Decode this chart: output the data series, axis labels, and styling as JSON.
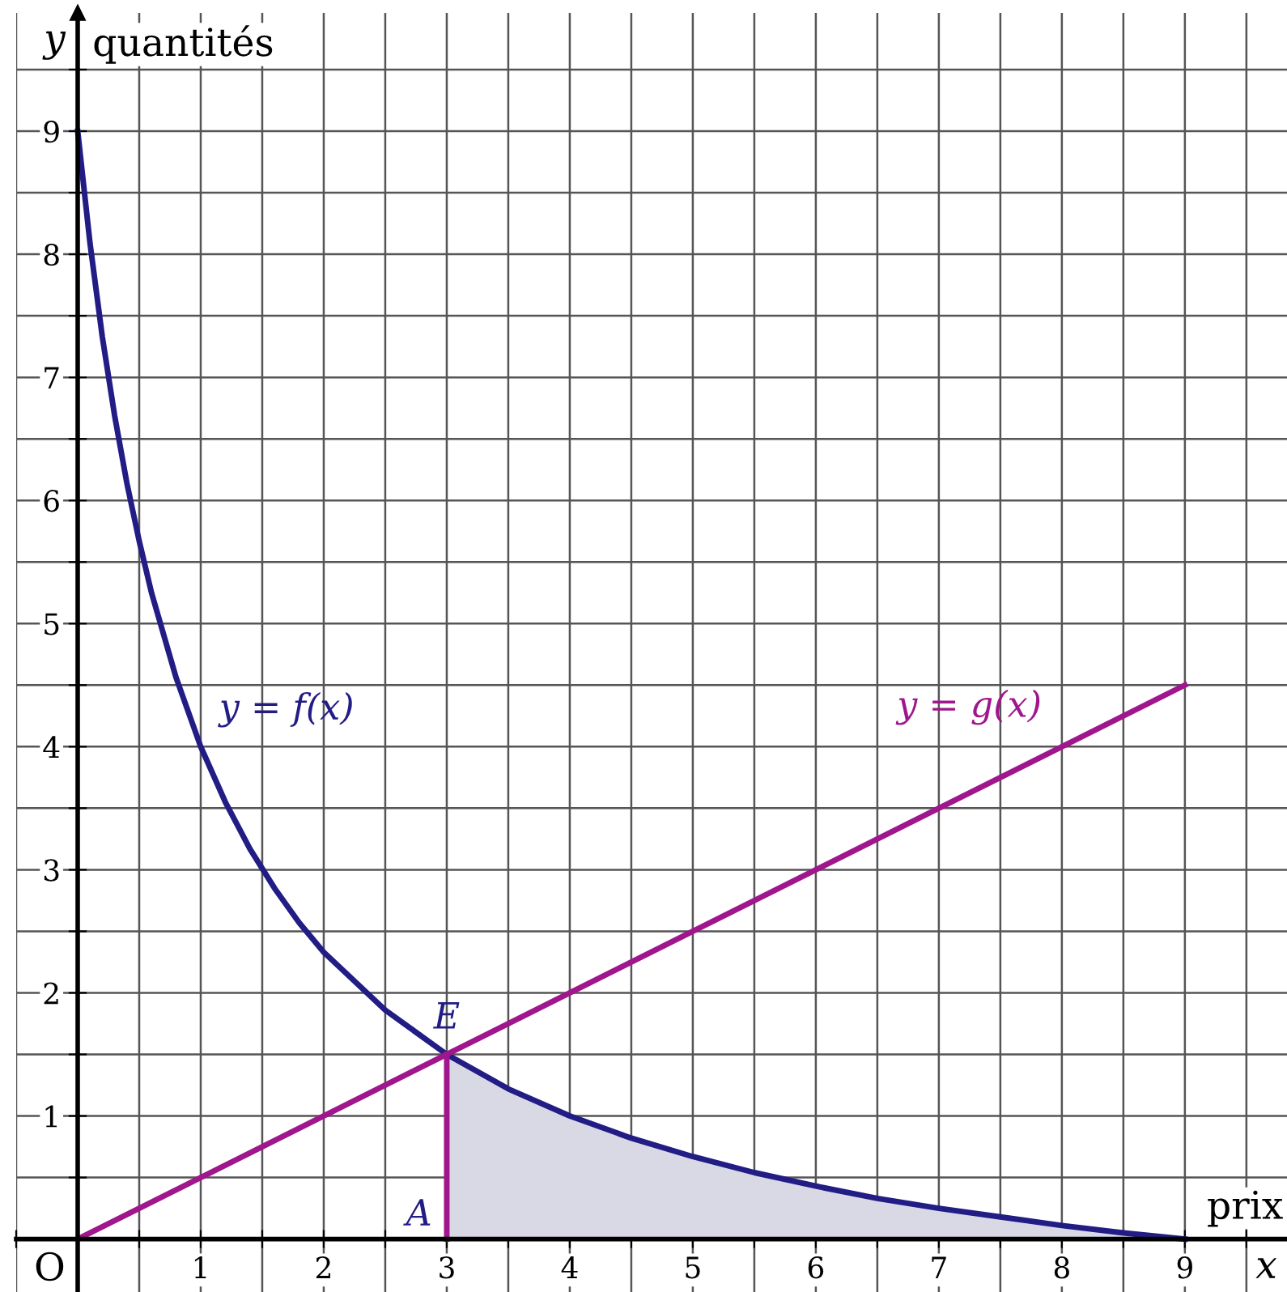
{
  "chart_data": {
    "type": "line",
    "xlabel": "x",
    "ylabel": "y",
    "xlim": [
      -0.5,
      9.83
    ],
    "ylim": [
      -0.43,
      9.96
    ],
    "xticks": [
      {
        "value": -0.5,
        "label": null
      },
      {
        "value": 0,
        "label": null
      },
      {
        "value": 0.5,
        "label": null
      },
      1,
      {
        "value": 1.5,
        "label": null
      },
      2,
      {
        "value": 2.5,
        "label": null
      },
      3,
      {
        "value": 3.5,
        "label": null
      },
      4,
      {
        "value": 4.5,
        "label": null
      },
      5,
      {
        "value": 5.5,
        "label": null
      },
      6,
      {
        "value": 6.5,
        "label": null
      },
      7,
      {
        "value": 7.5,
        "label": null
      },
      8,
      {
        "value": 8.5,
        "label": null
      },
      9,
      {
        "value": 9.5,
        "label": null
      }
    ],
    "yticks": [
      {
        "value": 0,
        "label": null
      },
      {
        "value": 0.5,
        "label": null
      },
      1,
      {
        "value": 1.5,
        "label": null
      },
      2,
      {
        "value": 2.5,
        "label": null
      },
      3,
      {
        "value": 3.5,
        "label": null
      },
      4,
      {
        "value": 4.5,
        "label": null
      },
      5,
      {
        "value": 5.5,
        "label": null
      },
      6,
      {
        "value": 6.5,
        "label": null
      },
      7,
      {
        "value": 7.5,
        "label": null
      },
      8,
      {
        "value": 8.5,
        "label": null
      },
      9,
      {
        "value": 9.5,
        "label": null
      }
    ],
    "grid": true,
    "legend": false,
    "marker": "none",
    "line_style": "solid",
    "series": [
      {
        "type": "area",
        "color": "#d9d9e6",
        "x": [
          3,
          3.5,
          4,
          4.5,
          5,
          5.5,
          6,
          6.5,
          7,
          7.5,
          8,
          8.5,
          9
        ],
        "values": [
          1.5,
          1.22,
          1,
          0.82,
          0.67,
          0.54,
          0.43,
          0.33,
          0.25,
          0.18,
          0.11,
          0.05,
          0
        ]
      },
      {
        "name": "y = f(x)",
        "color": "#221c85",
        "x": [
          0,
          0.1,
          0.2,
          0.3,
          0.4,
          0.5,
          0.6,
          0.8,
          1,
          1.2,
          1.4,
          1.6,
          1.8,
          2,
          2.5,
          3,
          3.5,
          4,
          4.5,
          5,
          5.5,
          6,
          6.5,
          7,
          7.5,
          8,
          8.5,
          9
        ],
        "values": [
          9,
          8.09,
          7.33,
          6.69,
          6.14,
          5.67,
          5.25,
          4.56,
          4,
          3.55,
          3.17,
          2.85,
          2.57,
          2.33,
          1.86,
          1.5,
          1.22,
          1,
          0.82,
          0.67,
          0.54,
          0.43,
          0.33,
          0.25,
          0.18,
          0.11,
          0.05,
          0
        ]
      },
      {
        "name": "y = g(x)",
        "color": "#a0168c",
        "x": [
          0,
          9
        ],
        "values": [
          0,
          4.5
        ]
      },
      {
        "color": "#a0168c",
        "x": [
          3,
          3
        ],
        "values": [
          0,
          1.5
        ]
      }
    ],
    "annotations": [
      {
        "text": "E",
        "x": 3,
        "y": 1.5
      },
      {
        "text": "A",
        "x": 3,
        "y": 0
      },
      "O",
      "quantités",
      "prix"
    ]
  }
}
